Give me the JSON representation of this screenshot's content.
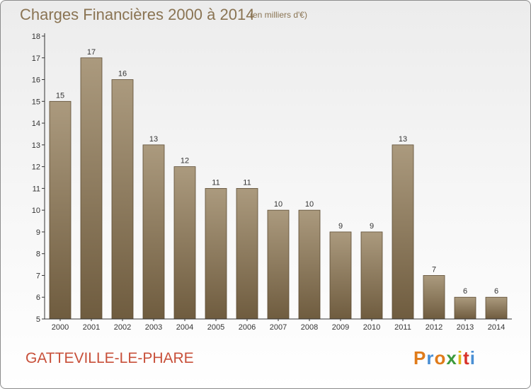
{
  "title": "Charges Financières 2000 à 2014",
  "subtitle": "(en milliers d'€)",
  "commune": "GATTEVILLE-LE-PHARE",
  "logo": {
    "letters": [
      "P",
      "r",
      "o",
      "x",
      "i",
      "t",
      "i"
    ],
    "colors": [
      "#e07b1a",
      "#4a8fd4",
      "#e07b1a",
      "#3c9a3c",
      "#e0b81a",
      "#d9332b",
      "#4a8fd4"
    ]
  },
  "colors": {
    "bar_top": "#ab9a7e",
    "bar_bottom": "#6f5c3f",
    "axis": "#333333",
    "title": "#8a7453",
    "commune": "#c8503a"
  },
  "chart_data": {
    "type": "bar",
    "categories": [
      "2000",
      "2001",
      "2002",
      "2003",
      "2004",
      "2005",
      "2006",
      "2007",
      "2008",
      "2009",
      "2010",
      "2011",
      "2012",
      "2013",
      "2014"
    ],
    "values": [
      15,
      17,
      16,
      13,
      12,
      11,
      11,
      10,
      10,
      9,
      9,
      13,
      7,
      6,
      6
    ],
    "ylim": [
      5,
      18
    ],
    "yticks": [
      5,
      6,
      7,
      8,
      9,
      10,
      11,
      12,
      13,
      14,
      15,
      16,
      17,
      18
    ],
    "grid": false,
    "xlabel": "",
    "ylabel": ""
  }
}
